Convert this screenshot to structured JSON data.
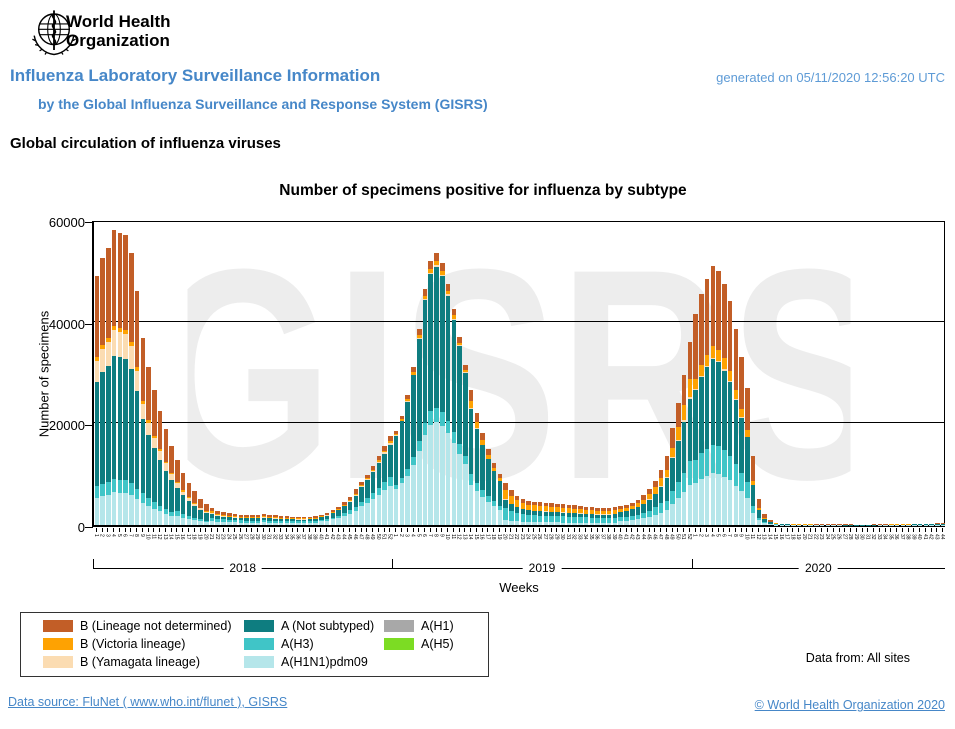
{
  "header": {
    "logo_line1": "World Health",
    "logo_line2": "Organization",
    "title": "Influenza Laboratory Surveillance Information",
    "subtitle": "by the Global Influenza Surveillance and Response System (GISRS)",
    "generated": "generated on 05/11/2020 12:56:20 UTC",
    "section_title": "Global circulation of influenza viruses",
    "accent_blue": "#4687C8"
  },
  "chart_data": {
    "type": "bar",
    "stacked": true,
    "title": "Number of specimens positive for influenza by subtype",
    "ylabel": "Number of specimens",
    "xlabel": "Weeks",
    "ylim": [
      0,
      60000
    ],
    "yticks": [
      0,
      20000,
      40000,
      60000
    ],
    "grid": "horizontal",
    "watermark": "GISRS",
    "legend_position": "bottom-left",
    "x_axis": {
      "unit": "week-number",
      "years": [
        {
          "label": "2018",
          "weeks": 52
        },
        {
          "label": "2019",
          "weeks": 52
        },
        {
          "label": "2020",
          "weeks": 44
        }
      ]
    },
    "series": [
      {
        "name": "A(H1)",
        "color": "#A8A8A8",
        "values": [
          0,
          0,
          0,
          0,
          0,
          0,
          0,
          0,
          0,
          0,
          0,
          0,
          0,
          0,
          0,
          0,
          0,
          0,
          0,
          0,
          0,
          0,
          0,
          0,
          0,
          0,
          0,
          0,
          0,
          0,
          0,
          0,
          0,
          0,
          0,
          0,
          0,
          0,
          0,
          0,
          0,
          0,
          0,
          0,
          0,
          0,
          0,
          0,
          0,
          0,
          0,
          0,
          0,
          0,
          0,
          0,
          0,
          0,
          0,
          0,
          0,
          0,
          0,
          0,
          0,
          0,
          0,
          0,
          0,
          0,
          0,
          0,
          0,
          0,
          0,
          0,
          0,
          0,
          0,
          0,
          0,
          0,
          0,
          0,
          0,
          0,
          0,
          0,
          0,
          0,
          0,
          0,
          0,
          0,
          0,
          0,
          0,
          0,
          0,
          0,
          0,
          0,
          0,
          0,
          0,
          0,
          0,
          0,
          0,
          0,
          0,
          0,
          0,
          0,
          0,
          0,
          0,
          0,
          0,
          0,
          0,
          0,
          0,
          0,
          0,
          0,
          0,
          0,
          0,
          0,
          0,
          0,
          0,
          0,
          0,
          0,
          0,
          0,
          0,
          0,
          0,
          0,
          0,
          0,
          0,
          0,
          0,
          0
        ]
      },
      {
        "name": "A(H5)",
        "color": "#7CDC23",
        "values": [
          0,
          0,
          0,
          0,
          0,
          0,
          0,
          0,
          0,
          0,
          0,
          0,
          0,
          0,
          0,
          0,
          0,
          0,
          0,
          0,
          0,
          0,
          0,
          0,
          0,
          0,
          0,
          0,
          0,
          0,
          0,
          0,
          0,
          0,
          0,
          0,
          0,
          0,
          0,
          0,
          0,
          0,
          0,
          0,
          0,
          0,
          0,
          0,
          0,
          0,
          0,
          0,
          0,
          0,
          0,
          0,
          0,
          0,
          0,
          0,
          0,
          0,
          0,
          0,
          0,
          0,
          0,
          0,
          0,
          0,
          0,
          0,
          0,
          0,
          0,
          0,
          0,
          0,
          0,
          0,
          0,
          0,
          0,
          0,
          0,
          0,
          0,
          0,
          0,
          0,
          0,
          0,
          0,
          0,
          0,
          0,
          0,
          0,
          0,
          0,
          0,
          0,
          0,
          0,
          0,
          0,
          0,
          0,
          0,
          0,
          0,
          0,
          0,
          0,
          0,
          0,
          0,
          0,
          0,
          0,
          0,
          0,
          0,
          0,
          0,
          0,
          0,
          0,
          0,
          0,
          0,
          0,
          0,
          0,
          0,
          0,
          0,
          0,
          0,
          0,
          0,
          0,
          0,
          0,
          0,
          0,
          0,
          0
        ]
      },
      {
        "name": "A(H1N1)pdm09",
        "color": "#B5E6EA",
        "values": [
          5400,
          5800,
          6000,
          6400,
          6300,
          6250,
          5900,
          5050,
          4400,
          3700,
          3200,
          2700,
          2250,
          1850,
          1800,
          1450,
          1150,
          920,
          730,
          570,
          790,
          670,
          600,
          550,
          520,
          490,
          480,
          470,
          480,
          500,
          480,
          460,
          430,
          420,
          400,
          380,
          380,
          400,
          420,
          740,
          870,
          1100,
          1370,
          1710,
          2130,
          2660,
          3700,
          4350,
          5100,
          5980,
          6860,
          7740,
          7030,
          8170,
          9690,
          11780,
          14630,
          17670,
          19760,
          20330,
          19570,
          18050,
          16150,
          14060,
          11970,
          7950,
          6600,
          5460,
          4500,
          3690,
          3000,
          985,
          815,
          695,
          625,
          575,
          550,
          535,
          520,
          510,
          500,
          485,
          475,
          460,
          450,
          430,
          420,
          410,
          400,
          410,
          420,
          815,
          880,
          970,
          1100,
          1300,
          1560,
          1915,
          2375,
          2970,
          4180,
          5280,
          6490,
          7920,
          8300,
          9100,
          9700,
          10200,
          10000,
          9500,
          8800,
          7700,
          6600,
          5400,
          2430,
          935,
          380,
          160,
          70,
          45,
          40,
          30,
          25,
          25,
          25,
          20,
          20,
          20,
          20,
          20,
          15,
          15,
          15,
          15,
          15,
          15,
          20,
          20,
          25,
          25,
          30,
          30,
          35,
          40,
          40,
          45,
          45,
          50
        ]
      },
      {
        "name": "A(H3)",
        "color": "#40C5C7",
        "values": [
          2200,
          2350,
          2450,
          2600,
          2600,
          2550,
          2400,
          2050,
          1850,
          1550,
          1300,
          1100,
          950,
          780,
          900,
          720,
          580,
          460,
          360,
          290,
          660,
          560,
          500,
          460,
          430,
          410,
          400,
          390,
          400,
          420,
          400,
          380,
          360,
          350,
          330,
          320,
          320,
          330,
          350,
          250,
          300,
          380,
          470,
          585,
          730,
          910,
          840,
          990,
          1160,
          1360,
          1560,
          1760,
          925,
          1075,
          1275,
          1550,
          1925,
          2325,
          2600,
          2675,
          2575,
          2375,
          2125,
          1850,
          1575,
          2120,
          1760,
          1460,
          1200,
          985,
          800,
          2460,
          2040,
          1740,
          1560,
          1440,
          1380,
          1335,
          1305,
          1275,
          1245,
          1215,
          1185,
          1155,
          1125,
          1080,
          1050,
          1020,
          1005,
          1020,
          1050,
          665,
          720,
          790,
          900,
          1060,
          1280,
          1565,
          1945,
          1755,
          2470,
          3120,
          3835,
          4680,
          4565,
          5005,
          5335,
          5610,
          5500,
          5225,
          4840,
          4235,
          3630,
          2970,
          1350,
          520,
          210,
          90,
          70,
          45,
          40,
          30,
          25,
          25,
          25,
          20,
          20,
          20,
          20,
          20,
          15,
          15,
          15,
          15,
          15,
          15,
          20,
          20,
          25,
          25,
          30,
          30,
          35,
          40,
          40,
          45,
          45,
          50
        ]
      },
      {
        "name": "A (Not subtyped)",
        "color": "#0E7D80",
        "values": [
          20600,
          22050,
          22900,
          24350,
          24150,
          23950,
          22450,
          19300,
          14700,
          12400,
          10600,
          9000,
          7500,
          6200,
          4600,
          3700,
          3000,
          2380,
          1870,
          1480,
          730,
          620,
          550,
          510,
          470,
          450,
          440,
          430,
          440,
          460,
          440,
          420,
          400,
          385,
          365,
          350,
          350,
          365,
          385,
          585,
          690,
          870,
          1080,
          1350,
          1680,
          2100,
          3020,
          3570,
          4180,
          4900,
          5620,
          6340,
          9620,
          11180,
          13260,
          16120,
          20020,
          24180,
          27040,
          27820,
          26780,
          24700,
          22100,
          19240,
          16380,
          12720,
          10560,
          8740,
          7200,
          5900,
          4800,
          1475,
          1225,
          1045,
          935,
          865,
          830,
          800,
          785,
          765,
          745,
          730,
          710,
          695,
          675,
          650,
          630,
          610,
          605,
          610,
          630,
          1110,
          1200,
          1320,
          1500,
          1770,
          2130,
          2610,
          3240,
          4590,
          6460,
          8160,
          10030,
          12240,
          13695,
          15015,
          16005,
          16830,
          16500,
          15675,
          14520,
          12705,
          10890,
          8910,
          4050,
          1560,
          630,
          270,
          90,
          60,
          50,
          40,
          35,
          30,
          30,
          30,
          25,
          25,
          25,
          25,
          20,
          20,
          20,
          20,
          20,
          20,
          25,
          25,
          30,
          35,
          40,
          40,
          45,
          50,
          55,
          60,
          60,
          65
        ]
      },
      {
        "name": "B (Yamagata lineage)",
        "color": "#FBDCB2",
        "values": [
          4150,
          4450,
          4650,
          4950,
          4900,
          4850,
          4550,
          3900,
          2950,
          2500,
          2100,
          1800,
          1500,
          1250,
          900,
          720,
          580,
          460,
          360,
          290,
          165,
          140,
          125,
          115,
          110,
          100,
          100,
          100,
          100,
          105,
          100,
          95,
          90,
          90,
          80,
          80,
          80,
          80,
          90,
          60,
          70,
          85,
          110,
          135,
          170,
          210,
          125,
          150,
          175,
          205,
          235,
          265,
          90,
          110,
          130,
          155,
          190,
          230,
          260,
          270,
          260,
          240,
          210,
          185,
          160,
          265,
          220,
          180,
          150,
          125,
          100,
          165,
          135,
          115,
          105,
          95,
          90,
          90,
          85,
          85,
          85,
          80,
          80,
          75,
          75,
          70,
          70,
          70,
          65,
          70,
          70,
          35,
          40,
          45,
          50,
          60,
          70,
          85,
          110,
          135,
          190,
          240,
          295,
          360,
          210,
          230,
          245,
          255,
          250,
          240,
          220,
          195,
          165,
          135,
          65,
          25,
          10,
          5,
          0,
          0,
          0,
          0,
          0,
          0,
          0,
          0,
          0,
          0,
          0,
          0,
          0,
          0,
          0,
          0,
          0,
          0,
          0,
          0,
          0,
          0,
          0,
          0,
          0,
          0,
          0,
          0,
          0,
          0
        ]
      },
      {
        "name": "B (Victoria lineage)",
        "color": "#FEA202",
        "values": [
          750,
          800,
          800,
          870,
          860,
          850,
          800,
          700,
          550,
          450,
          400,
          340,
          280,
          230,
          260,
          210,
          170,
          130,
          100,
          80,
          330,
          280,
          250,
          230,
          215,
          205,
          200,
          195,
          200,
          210,
          200,
          190,
          180,
          175,
          165,
          160,
          160,
          165,
          175,
          80,
          90,
          115,
          145,
          180,
          225,
          280,
          210,
          250,
          290,
          340,
          390,
          440,
          280,
          320,
          380,
          465,
          580,
          700,
          780,
          800,
          770,
          710,
          640,
          555,
          470,
          1325,
          1100,
          910,
          750,
          615,
          500,
          1805,
          1495,
          1275,
          1145,
          1055,
          1010,
          980,
          955,
          935,
          915,
          890,
          870,
          845,
          825,
          790,
          770,
          750,
          735,
          750,
          770,
          520,
          560,
          615,
          700,
          825,
          995,
          1220,
          1510,
          1350,
          1900,
          2400,
          2950,
          3600,
          1865,
          2045,
          2180,
          2295,
          2250,
          2135,
          1980,
          1730,
          1485,
          1215,
          675,
          260,
          105,
          45,
          90,
          60,
          50,
          40,
          35,
          30,
          30,
          30,
          25,
          25,
          25,
          25,
          20,
          20,
          20,
          20,
          20,
          20,
          25,
          25,
          30,
          35,
          40,
          40,
          45,
          50,
          55,
          60,
          60,
          65
        ]
      },
      {
        "name": "B (Lineage not determined)",
        "color": "#C25E27",
        "values": [
          15900,
          17050,
          17700,
          18830,
          18690,
          18550,
          17400,
          15000,
          12350,
          10400,
          8900,
          7560,
          6320,
          5190,
          4340,
          3500,
          2820,
          2250,
          1780,
          1390,
          625,
          530,
          475,
          435,
          405,
          395,
          380,
          365,
          380,
          405,
          380,
          355,
          340,
          330,
          310,
          310,
          310,
          310,
          330,
          235,
          280,
          350,
          425,
          540,
          665,
          840,
          505,
          590,
          695,
          815,
          935,
          1055,
          555,
          645,
          765,
          930,
          1155,
          1395,
          1560,
          1605,
          1545,
          1425,
          1275,
          1110,
          945,
          2120,
          1760,
          1450,
          1200,
          985,
          800,
          1310,
          1090,
          930,
          830,
          770,
          740,
          710,
          700,
          680,
          660,
          650,
          630,
          620,
          600,
          580,
          560,
          540,
          540,
          540,
          560,
          555,
          600,
          660,
          750,
          885,
          1065,
          1305,
          1620,
          2700,
          3800,
          4800,
          5900,
          7200,
          12865,
          14105,
          15035,
          15810,
          15500,
          14725,
          13640,
          11935,
          10230,
          8370,
          4930,
          1900,
          765,
          330,
          130,
          90,
          70,
          60,
          60,
          50,
          40,
          40,
          40,
          40,
          30,
          30,
          40,
          40,
          30,
          30,
          30,
          40,
          30,
          40,
          40,
          50,
          50,
          70,
          70,
          70,
          80,
          80,
          100,
          100
        ]
      }
    ]
  },
  "legend": {
    "columns": [
      [
        "B (Lineage not determined)",
        "B (Victoria lineage)",
        "B (Yamagata lineage)"
      ],
      [
        "A (Not subtyped)",
        "A(H3)",
        "A(H1N1)pdm09"
      ],
      [
        "A(H1)",
        "A(H5)"
      ]
    ]
  },
  "notes": {
    "data_from": "Data from: All sites"
  },
  "footer": {
    "source_link": "Data source: FluNet ( www.who.int/flunet ), GISRS",
    "copyright_link": "© World Health Organization 2020"
  }
}
